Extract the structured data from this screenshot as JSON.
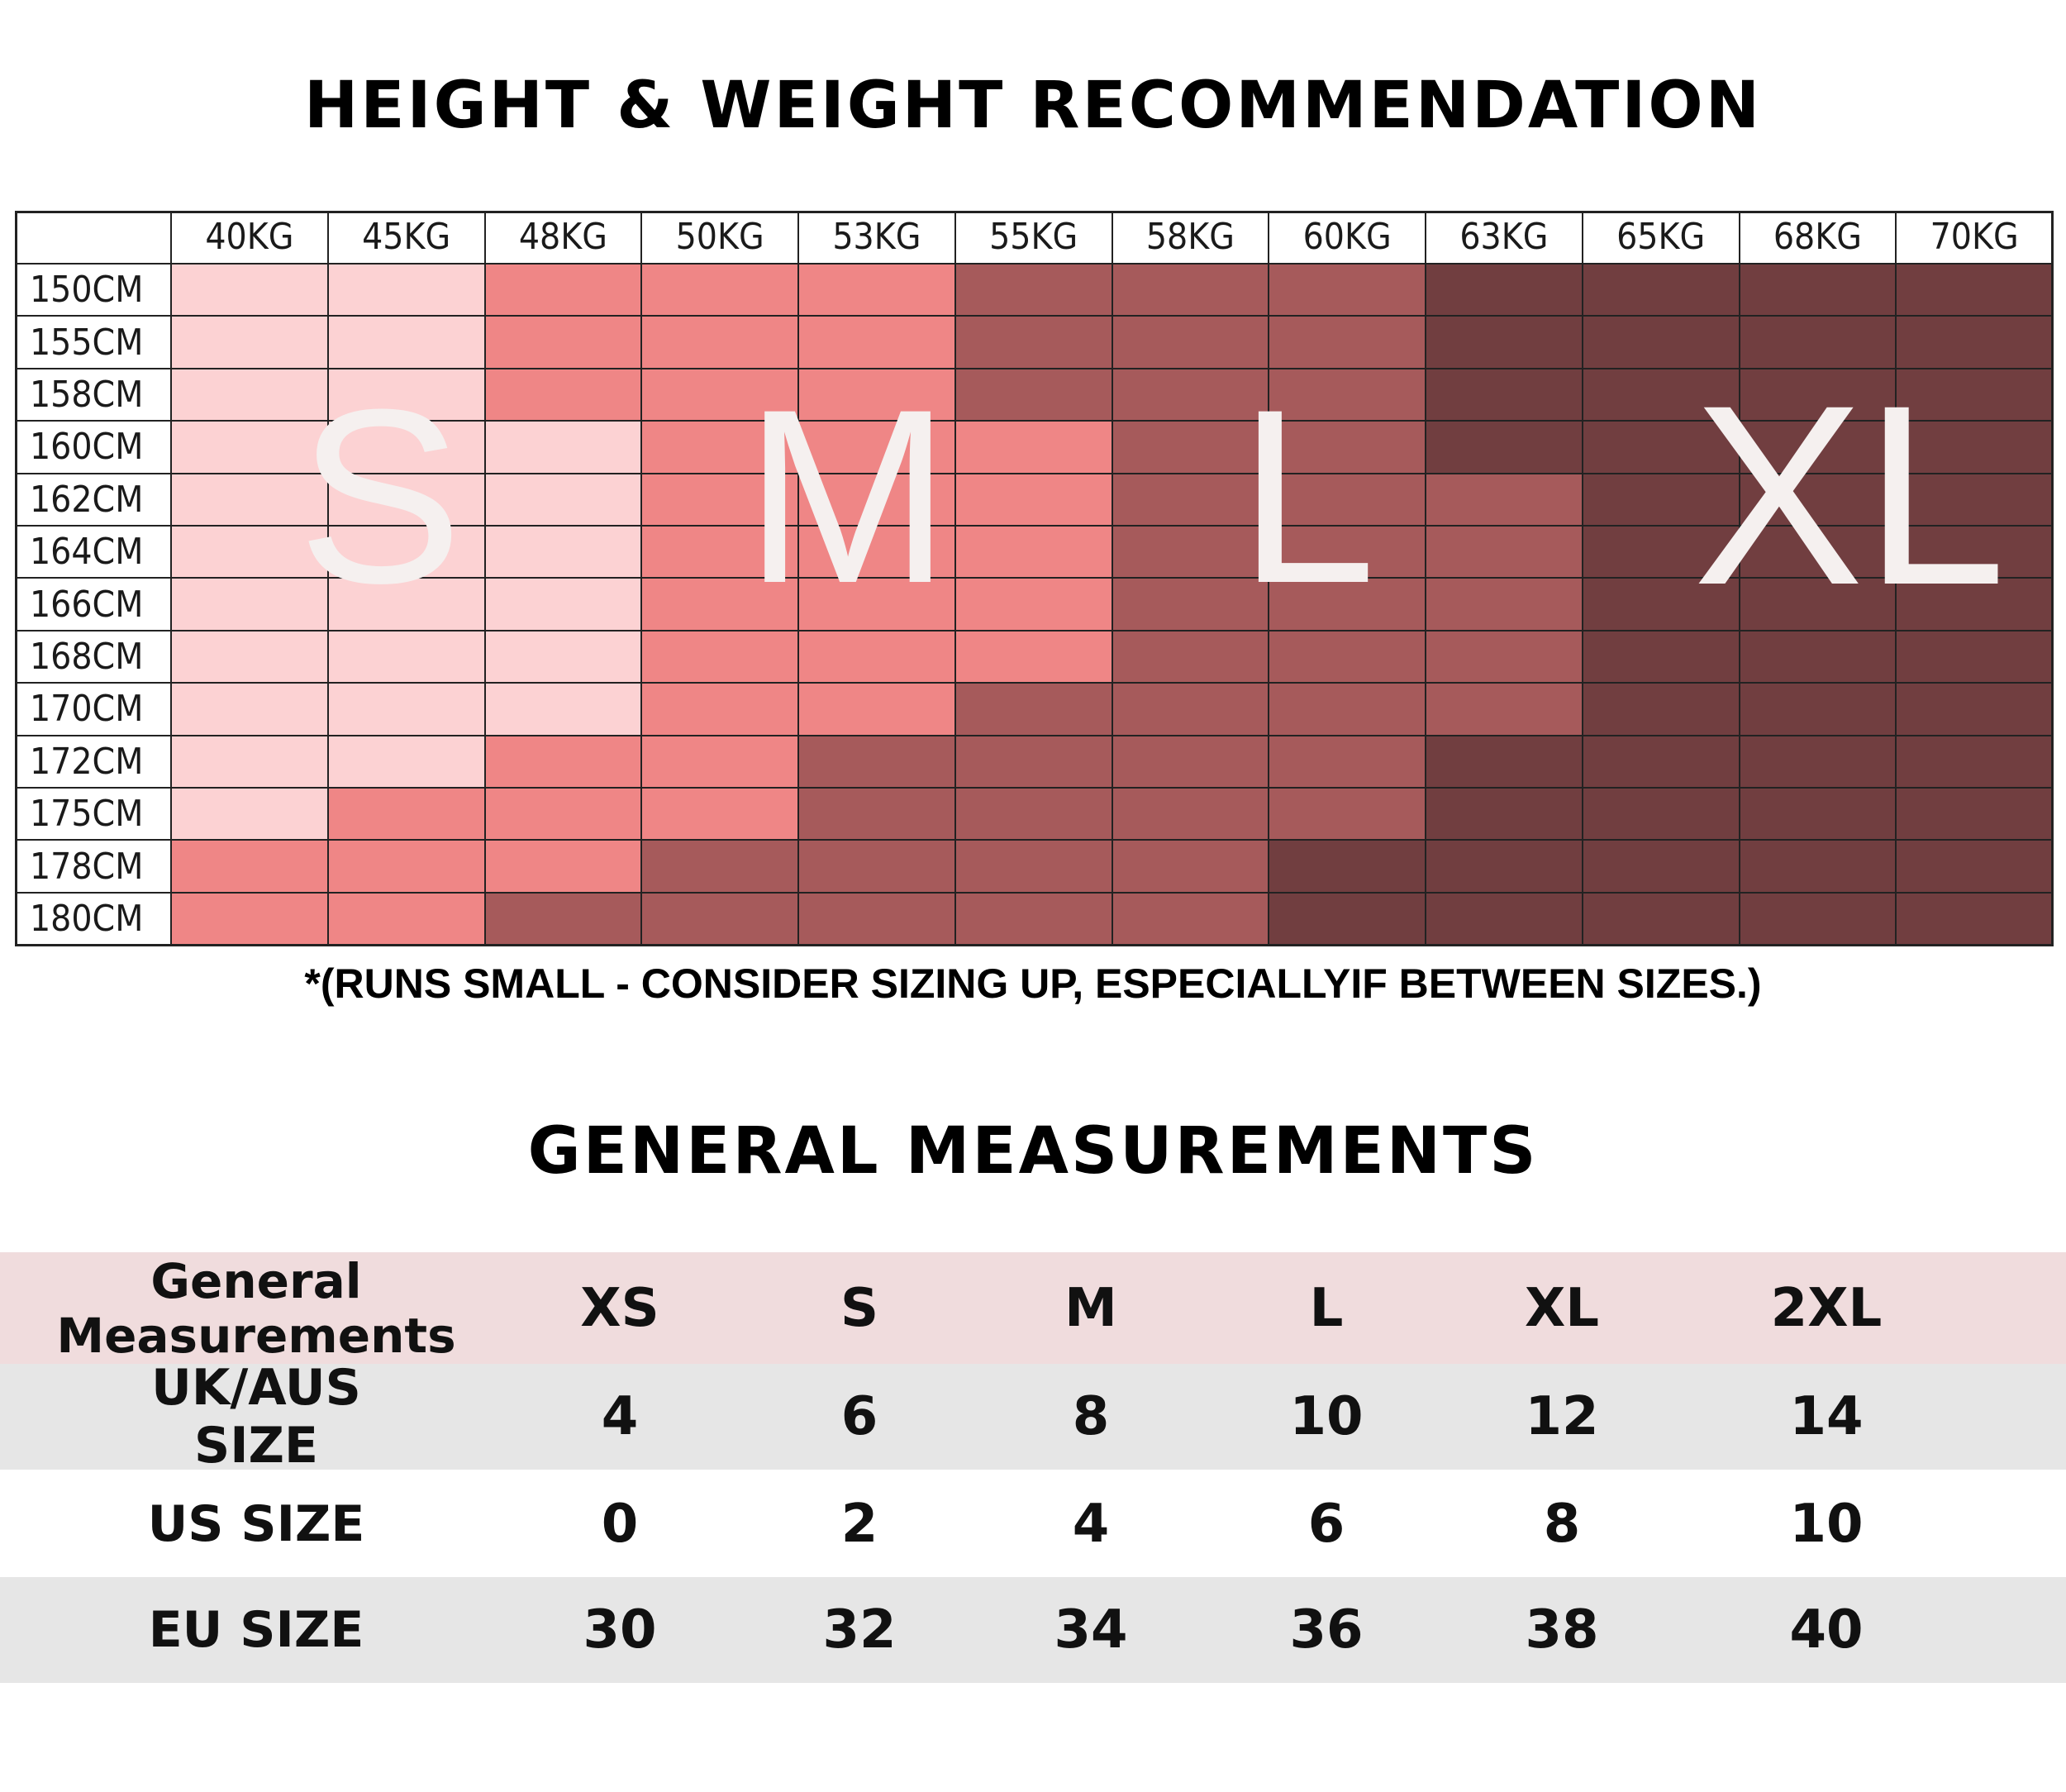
{
  "hw_title": "HEIGHT & WEIGHT RECOMMENDATION",
  "hw_grid": {
    "weights": [
      "40KG",
      "45KG",
      "48KG",
      "50KG",
      "53KG",
      "55KG",
      "58KG",
      "60KG",
      "63KG",
      "65KG",
      "68KG",
      "70KG"
    ],
    "heights": [
      "150CM",
      "155CM",
      "158CM",
      "160CM",
      "162CM",
      "164CM",
      "166CM",
      "168CM",
      "170CM",
      "172CM",
      "175CM",
      "178CM",
      "180CM"
    ],
    "size_colors": {
      "S": "#fcd2d3",
      "M": "#ef8686",
      "L": "#a65a5b",
      "XL": "#713e40"
    },
    "cells": [
      [
        "S",
        "S",
        "M",
        "M",
        "M",
        "L",
        "L",
        "L",
        "XL",
        "XL",
        "XL",
        "XL"
      ],
      [
        "S",
        "S",
        "M",
        "M",
        "M",
        "L",
        "L",
        "L",
        "XL",
        "XL",
        "XL",
        "XL"
      ],
      [
        "S",
        "S",
        "M",
        "M",
        "M",
        "L",
        "L",
        "L",
        "XL",
        "XL",
        "XL",
        "XL"
      ],
      [
        "S",
        "S",
        "S",
        "M",
        "M",
        "M",
        "L",
        "L",
        "XL",
        "XL",
        "XL",
        "XL"
      ],
      [
        "S",
        "S",
        "S",
        "M",
        "M",
        "M",
        "L",
        "L",
        "L",
        "XL",
        "XL",
        "XL"
      ],
      [
        "S",
        "S",
        "S",
        "M",
        "M",
        "M",
        "L",
        "L",
        "L",
        "XL",
        "XL",
        "XL"
      ],
      [
        "S",
        "S",
        "S",
        "M",
        "M",
        "M",
        "L",
        "L",
        "L",
        "XL",
        "XL",
        "XL"
      ],
      [
        "S",
        "S",
        "S",
        "M",
        "M",
        "M",
        "L",
        "L",
        "L",
        "XL",
        "XL",
        "XL"
      ],
      [
        "S",
        "S",
        "S",
        "M",
        "M",
        "L",
        "L",
        "L",
        "L",
        "XL",
        "XL",
        "XL"
      ],
      [
        "S",
        "S",
        "M",
        "M",
        "L",
        "L",
        "L",
        "L",
        "XL",
        "XL",
        "XL",
        "XL"
      ],
      [
        "S",
        "M",
        "M",
        "M",
        "L",
        "L",
        "L",
        "L",
        "XL",
        "XL",
        "XL",
        "XL"
      ],
      [
        "M",
        "M",
        "M",
        "L",
        "L",
        "L",
        "L",
        "XL",
        "XL",
        "XL",
        "XL",
        "XL"
      ],
      [
        "M",
        "M",
        "L",
        "L",
        "L",
        "L",
        "L",
        "XL",
        "XL",
        "XL",
        "XL",
        "XL"
      ]
    ],
    "overlay_labels": [
      "S",
      "M",
      "L",
      "XL"
    ]
  },
  "note": "*(RUNS SMALL - CONSIDER SIZING UP, ESPECIALLYIF BETWEEN SIZES.)",
  "gm_title": "GENERAL MEASUREMENTS",
  "gm_table": {
    "header_label_line1": "General",
    "header_label_line2": "Measurements",
    "sizes": [
      "XS",
      "S",
      "M",
      "L",
      "XL",
      "2XL"
    ],
    "rows": [
      {
        "label": "UK/AUS SIZE",
        "values": [
          "4",
          "6",
          "8",
          "10",
          "12",
          "14"
        ]
      },
      {
        "label": "US SIZE",
        "values": [
          "0",
          "2",
          "4",
          "6",
          "8",
          "10"
        ]
      },
      {
        "label": "EU SIZE",
        "values": [
          "30",
          "32",
          "34",
          "36",
          "38",
          "40"
        ]
      }
    ],
    "colors": {
      "header_bg": "#f0dcdd",
      "row_alt_bg": "#e6e6e6",
      "row_bg": "#ffffff"
    }
  }
}
